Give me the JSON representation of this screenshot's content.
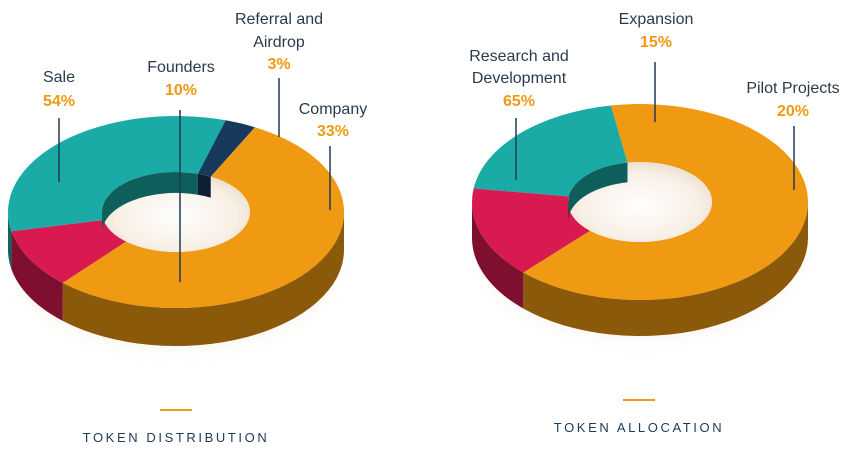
{
  "colors": {
    "orange": "#ef9a12",
    "crimson": "#d91a50",
    "teal": "#1aaba7",
    "navy": "#173a5c",
    "text": "#2b3a4a",
    "caption": "#1f3a55"
  },
  "chart_data": [
    {
      "type": "pie",
      "style": "3d-donut",
      "title": "TOKEN DISTRIBUTION",
      "slices": [
        {
          "name": "Sale",
          "value": 54,
          "label": "54%",
          "color": "#ef9a12"
        },
        {
          "name": "Founders",
          "value": 10,
          "label": "10%",
          "color": "#d91a50"
        },
        {
          "name": "Company",
          "value": 33,
          "label": "33%",
          "color": "#1aaba7"
        },
        {
          "name_lines": [
            "Referral and",
            "Airdrop"
          ],
          "value": 3,
          "label": "3%",
          "color": "#173a5c"
        }
      ]
    },
    {
      "type": "pie",
      "style": "3d-donut",
      "title": "TOKEN ALLOCATION",
      "slices": [
        {
          "name_lines": [
            "Research and",
            "Development"
          ],
          "value": 65,
          "label": "65%",
          "color": "#ef9a12"
        },
        {
          "name": "Expansion",
          "value": 15,
          "label": "15%",
          "color": "#d91a50"
        },
        {
          "name": "Pilot Projects",
          "value": 20,
          "label": "20%",
          "color": "#1aaba7"
        }
      ]
    }
  ]
}
